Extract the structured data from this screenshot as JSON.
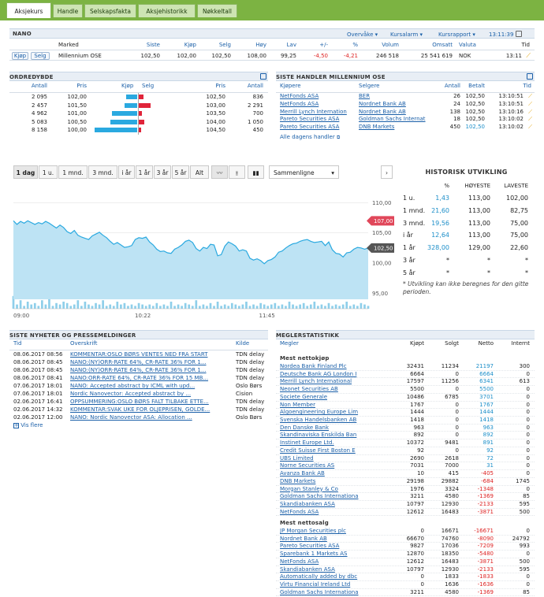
{
  "tabs": [
    "Aksjekurs",
    "Handle",
    "Selskapsfakta",
    "Aksjehistorikk",
    "Nøkkeltall"
  ],
  "quote": {
    "ticker": "NANO",
    "links": [
      "Overvåke",
      "Kursalarm",
      "Kursrapport"
    ],
    "time": "13:11:39",
    "headers": [
      "Marked",
      "Siste",
      "Kjøp",
      "Selg",
      "Høy",
      "Lav",
      "+/-",
      "%",
      "Volum",
      "Omsatt",
      "Valuta",
      "Tid"
    ],
    "buy": "Kjøp",
    "sell": "Selg",
    "values": [
      "Millennium OSE",
      "102,50",
      "102,00",
      "102,50",
      "108,00",
      "99,25",
      "-4,50",
      "-4,21",
      "246 518",
      "25 541 619",
      "NOK",
      "13:11"
    ]
  },
  "orderbook": {
    "title": "ORDREDYBDE",
    "headers": [
      "Antall",
      "Pris",
      "Kjøp",
      "Selg",
      "Pris",
      "Antall"
    ],
    "rows": [
      {
        "bq": "2 095",
        "bp": "102,00",
        "sp": "102,50",
        "sq": "836",
        "bf": 0.25,
        "sf": 0.1
      },
      {
        "bq": "2 457",
        "bp": "101,50",
        "sp": "103,00",
        "sq": "2 291",
        "bf": 0.29,
        "sf": 0.27
      },
      {
        "bq": "4 962",
        "bp": "101,00",
        "sp": "103,50",
        "sq": "700",
        "bf": 0.58,
        "sf": 0.08
      },
      {
        "bq": "5 083",
        "bp": "100,50",
        "sp": "104,00",
        "sq": "1 050",
        "bf": 0.6,
        "sf": 0.12
      },
      {
        "bq": "8 158",
        "bp": "100,00",
        "sp": "104,50",
        "sq": "450",
        "bf": 0.96,
        "sf": 0.05
      }
    ]
  },
  "trades": {
    "title": "SISTE HANDLER MILLENNIUM OSE",
    "headers": [
      "Kjøpere",
      "Selgere",
      "Antall",
      "Betalt",
      "Tid"
    ],
    "rows": [
      [
        "NetFonds ASA",
        "BER",
        "26",
        "102,50",
        "13:10:51"
      ],
      [
        "NetFonds ASA",
        "Nordnet Bank AB",
        "24",
        "102,50",
        "13:10:51"
      ],
      [
        "Merrill Lynch Internation",
        "Nordnet Bank AB",
        "138",
        "102,50",
        "13:10:16"
      ],
      [
        "Pareto Securities ASA",
        "Goldman Sachs Internat",
        "18",
        "102,50",
        "13:10:02"
      ],
      [
        "Pareto Securities ASA",
        "DNB Markets",
        "450",
        "102,50",
        "13:10:02"
      ]
    ],
    "all_link": "Alle dagens handler"
  },
  "chart_controls": {
    "periods": [
      "1 dag",
      "1 u.",
      "1 mnd.",
      "3 mnd.",
      "i år",
      "1 år",
      "3 år",
      "5 år",
      "Alt"
    ],
    "compare": "Sammenligne"
  },
  "chart_data": {
    "type": "area",
    "x_ticks": [
      "09:00",
      "10:22",
      "11:45"
    ],
    "y_ticks": [
      "110,00",
      "105,00",
      "100,00",
      "95,00"
    ],
    "ylim": [
      94,
      112
    ],
    "price_labels": {
      "high": "107,00",
      "last": "102,50"
    },
    "price": [
      107.0,
      106.4,
      106.9,
      106.6,
      107.0,
      106.7,
      106.4,
      106.7,
      106.5,
      106.9,
      106.6,
      106.2,
      105.8,
      106.3,
      105.9,
      105.2,
      104.9,
      105.4,
      104.6,
      104.3,
      104.1,
      103.9,
      104.5,
      104.8,
      105.1,
      104.6,
      104.2,
      103.6,
      103.1,
      103.4,
      103.0,
      102.6,
      102.7,
      102.9,
      103.9,
      104.2,
      104.1,
      104.3,
      103.5,
      103.0,
      102.3,
      101.9,
      102.0,
      101.7,
      101.6,
      102.3,
      102.6,
      103.0,
      103.6,
      103.8,
      103.4,
      102.4,
      102.0,
      102.6,
      102.4,
      103.1,
      103.0,
      101.2,
      101.4,
      102.8,
      103.5,
      103.2,
      102.8,
      102.0,
      102.2,
      102.0,
      100.8,
      100.5,
      100.7,
      100.4,
      99.9,
      100.4,
      100.6,
      101.0,
      101.8,
      102.0,
      102.5,
      102.9,
      103.2,
      103.3,
      103.6,
      103.8,
      103.9,
      103.6,
      103.4,
      103.5,
      103.6,
      102.9,
      103.5,
      102.2,
      101.6,
      101.5,
      101.0,
      101.7,
      101.8,
      102.3,
      102.6,
      102.5,
      102.3,
      102.5
    ],
    "volume": [
      0.9,
      0.3,
      0.6,
      0.2,
      0.5,
      0.3,
      0.4,
      0.2,
      0.6,
      0.3,
      0.7,
      0.2,
      0.4,
      0.3,
      0.5,
      0.4,
      0.2,
      0.3,
      0.6,
      0.2,
      0.5,
      0.3,
      0.2,
      0.4,
      0.3,
      0.6,
      0.2,
      0.3,
      0.2,
      0.5,
      0.3,
      0.4,
      0.2,
      0.3,
      0.2,
      0.4,
      0.3,
      0.2,
      0.3,
      0.2,
      0.4,
      0.2,
      0.3,
      0.2,
      0.5,
      0.2,
      0.3,
      0.2,
      0.4,
      0.3,
      0.2,
      0.6,
      0.2,
      0.3,
      0.2,
      0.4,
      0.2,
      0.5,
      0.2,
      0.3,
      0.2,
      0.4,
      0.3,
      0.2,
      0.3,
      0.5,
      0.2,
      0.3,
      0.2,
      0.4,
      0.3,
      0.2,
      0.3,
      0.4,
      0.2,
      0.3,
      0.2,
      0.5,
      0.3,
      0.2,
      0.3,
      0.4,
      0.2,
      0.3,
      0.5,
      0.2,
      0.3,
      0.2,
      0.4,
      0.2,
      0.3,
      0.2,
      0.3,
      0.5,
      0.2,
      0.3,
      0.2,
      0.4,
      0.3,
      0.2
    ]
  },
  "history": {
    "title": "HISTORISK UTVIKLING",
    "headers": [
      "%",
      "HØYESTE",
      "LAVESTE"
    ],
    "rows": [
      [
        "1 u.",
        "1,43",
        "113,00",
        "102,00"
      ],
      [
        "1 mnd.",
        "21,60",
        "113,00",
        "82,75"
      ],
      [
        "3 mnd.",
        "19,56",
        "113,00",
        "75,00"
      ],
      [
        "i år",
        "12,64",
        "113,00",
        "75,00"
      ],
      [
        "1 år",
        "328,00",
        "129,00",
        "22,60"
      ],
      [
        "3 år",
        "*",
        "*",
        "*"
      ],
      [
        "5 år",
        "*",
        "*",
        "*"
      ]
    ],
    "note": "* Utvikling kan ikke beregnes for den gitte perioden."
  },
  "news": {
    "title": "SISTE NYHETER OG PRESSEMELDINGER",
    "headers": [
      "Tid",
      "Overskrift",
      "Kilde"
    ],
    "rows": [
      [
        "08.06.2017 08:56",
        "KOMMENTAR:OSLO BØRS VENTES NED FRA START",
        "TDN delay"
      ],
      [
        "08.06.2017 08:45",
        "NANO:(NY)ORR-RATE 64%, CR-RATE 36% FOR 1...",
        "TDN delay"
      ],
      [
        "08.06.2017 08:45",
        "NANO:(NY)ORR-RATE 64%, CR-RATE 36% FOR 1...",
        "TDN delay"
      ],
      [
        "08.06.2017 08:41",
        "NANO:ORR-RATE 64%, CR-RATE 36% FOR 15 MB...",
        "TDN delay"
      ],
      [
        "07.06.2017 18:01",
        "NANO: Accepted abstract by ICML with upd...",
        "Oslo Børs"
      ],
      [
        "07.06.2017 18:01",
        "Nordic Nanovector: Accepted abstract by ...",
        "Cision"
      ],
      [
        "02.06.2017 16:41",
        "OPPSUMMERING:OSLO BØRS FALT TILBAKE ETTE...",
        "TDN delay"
      ],
      [
        "02.06.2017 14:32",
        "KOMMENTAR:SVAK UKE FOR OLJEPRISEN, GOLDE...",
        "TDN delay"
      ],
      [
        "02.06.2017 12:00",
        "NANO: Nordic Nanovector ASA: Allocation ...",
        "Oslo Børs"
      ]
    ],
    "more": "Vis flere"
  },
  "brokers": {
    "title": "MEGLERSTATISTIKK",
    "headers": [
      "Megler",
      "Kjøpt",
      "Solgt",
      "Netto",
      "Internt"
    ],
    "buy_title": "Mest nettokjøp",
    "sell_title": "Mest nettosalg",
    "buy_rows": [
      [
        "Nordea Bank Finland Plc",
        "32431",
        "11234",
        "21197",
        "300"
      ],
      [
        "Deutsche Bank AG London I",
        "6664",
        "0",
        "6664",
        "0"
      ],
      [
        "Merrill Lynch International",
        "17597",
        "11256",
        "6341",
        "613"
      ],
      [
        "Neonet Securities AB",
        "5500",
        "0",
        "5500",
        "0"
      ],
      [
        "Societe Generale",
        "10486",
        "6785",
        "3701",
        "0"
      ],
      [
        "Non Member",
        "1767",
        "0",
        "1767",
        "0"
      ],
      [
        "Algoengineering Europe Lim",
        "1444",
        "0",
        "1444",
        "0"
      ],
      [
        "Svenska Handelsbanken AB",
        "1418",
        "0",
        "1418",
        "0"
      ],
      [
        "Den Danske Bank",
        "963",
        "0",
        "963",
        "0"
      ],
      [
        "Skandinaviska Enskilda Ban",
        "892",
        "0",
        "892",
        "0"
      ],
      [
        "Instinet Europe Ltd.",
        "10372",
        "9481",
        "891",
        "0"
      ],
      [
        "Credit Suisse First Boston E",
        "92",
        "0",
        "92",
        "0"
      ],
      [
        "UBS Limited",
        "2690",
        "2618",
        "72",
        "0"
      ],
      [
        "Norne Securities AS",
        "7031",
        "7000",
        "31",
        "0"
      ],
      [
        "Avanza Bank AB",
        "10",
        "415",
        "-405",
        "0"
      ],
      [
        "DNB Markets",
        "29198",
        "29882",
        "-684",
        "1745"
      ],
      [
        "Morgan Stanley & Co",
        "1976",
        "3324",
        "-1348",
        "0"
      ],
      [
        "Goldman Sachs Internationa",
        "3211",
        "4580",
        "-1369",
        "85"
      ],
      [
        "Skandiabanken ASA",
        "10797",
        "12930",
        "-2133",
        "595"
      ],
      [
        "NetFonds ASA",
        "12612",
        "16483",
        "-3871",
        "500"
      ]
    ],
    "sell_rows": [
      [
        "JP Morgan Securities plc",
        "0",
        "16671",
        "-16671",
        "0"
      ],
      [
        "Nordnet Bank AB",
        "66670",
        "74760",
        "-8090",
        "24792"
      ],
      [
        "Pareto Securities ASA",
        "9827",
        "17036",
        "-7209",
        "993"
      ],
      [
        "Sparebank 1 Markets AS",
        "12870",
        "18350",
        "-5480",
        "0"
      ],
      [
        "NetFonds ASA",
        "12612",
        "16483",
        "-3871",
        "500"
      ],
      [
        "Skandiabanken ASA",
        "10797",
        "12930",
        "-2133",
        "595"
      ],
      [
        "Automatically added by dbc",
        "0",
        "1833",
        "-1833",
        "0"
      ],
      [
        "Virtu Financial Ireland Ltd",
        "0",
        "1636",
        "-1636",
        "0"
      ],
      [
        "Goldman Sachs Internationa",
        "3211",
        "4580",
        "-1369",
        "85"
      ]
    ]
  }
}
